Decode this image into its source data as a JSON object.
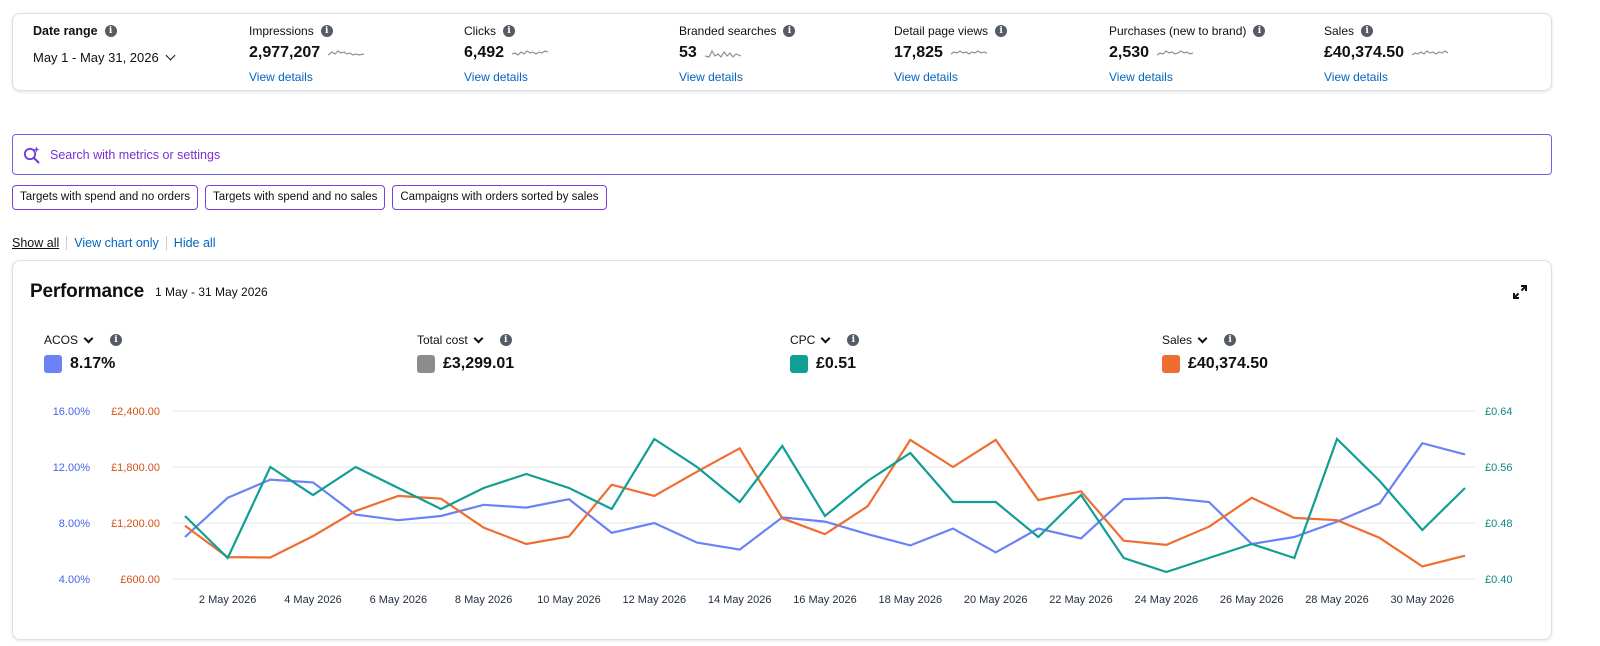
{
  "summary": {
    "date_range": {
      "label": "Date range",
      "value": "May 1 - May 31, 2026"
    },
    "metrics": [
      {
        "label": "Impressions",
        "value": "2,977,207",
        "link": "View details"
      },
      {
        "label": "Clicks",
        "value": "6,492",
        "link": "View details"
      },
      {
        "label": "Branded searches",
        "value": "53",
        "link": "View details"
      },
      {
        "label": "Detail page views",
        "value": "17,825",
        "link": "View details"
      },
      {
        "label": "Purchases (new to brand)",
        "value": "2,530",
        "link": "View details"
      },
      {
        "label": "Sales",
        "value": "£40,374.50",
        "link": "View details"
      }
    ]
  },
  "search": {
    "placeholder": "Search with metrics or settings"
  },
  "chips": [
    "Targets with spend and no orders",
    "Targets with spend and no sales",
    "Campaigns with orders sorted by sales"
  ],
  "view_links": {
    "show_all": "Show all",
    "chart_only": "View chart only",
    "hide_all": "Hide all"
  },
  "performance": {
    "title": "Performance",
    "date": "1 May - 31 May 2026",
    "metrics": [
      {
        "label": "ACOS",
        "value": "8.17%",
        "color": "#6b82f5"
      },
      {
        "label": "Total cost",
        "value": "£3,299.01",
        "color": "#8c8c8c"
      },
      {
        "label": "CPC",
        "value": "£0.51",
        "color": "#119e94"
      },
      {
        "label": "Sales",
        "value": "£40,374.50",
        "color": "#f06d32"
      }
    ]
  },
  "chart_data": {
    "type": "line",
    "x_ticks": [
      "2 May 2026",
      "4 May 2026",
      "6 May 2026",
      "8 May 2026",
      "10 May 2026",
      "12 May 2026",
      "14 May 2026",
      "16 May 2026",
      "18 May 2026",
      "20 May 2026",
      "22 May 2026",
      "24 May 2026",
      "26 May 2026",
      "28 May 2026",
      "30 May 2026"
    ],
    "x": [
      "1 May 2026",
      "2 May 2026",
      "3 May 2026",
      "4 May 2026",
      "5 May 2026",
      "6 May 2026",
      "7 May 2026",
      "8 May 2026",
      "9 May 2026",
      "10 May 2026",
      "11 May 2026",
      "12 May 2026",
      "13 May 2026",
      "14 May 2026",
      "15 May 2026",
      "16 May 2026",
      "17 May 2026",
      "18 May 2026",
      "19 May 2026",
      "20 May 2026",
      "21 May 2026",
      "22 May 2026",
      "23 May 2026",
      "24 May 2026",
      "25 May 2026",
      "26 May 2026",
      "27 May 2026",
      "28 May 2026",
      "29 May 2026",
      "30 May 2026",
      "31 May 2026"
    ],
    "axes": {
      "left_acos": {
        "ticks": [
          "4.00%",
          "8.00%",
          "12.00%",
          "16.00%"
        ],
        "range": [
          4,
          16
        ],
        "color": "#4a63e6"
      },
      "left_sales": {
        "ticks": [
          "£600.00",
          "£1,200.00",
          "£1,800.00",
          "£2,400.00"
        ],
        "range": [
          600,
          2400
        ],
        "color": "#d35417"
      },
      "right_cpc": {
        "ticks": [
          "£0.40",
          "£0.48",
          "£0.56",
          "£0.64"
        ],
        "range": [
          0.4,
          0.64
        ],
        "color": "#0e8a80"
      }
    },
    "series": [
      {
        "name": "ACOS",
        "axis": "left_acos",
        "color": "#6b82f5",
        "values": [
          7.0,
          9.8,
          11.1,
          10.9,
          8.6,
          8.2,
          8.5,
          9.3,
          9.1,
          9.7,
          7.3,
          8.0,
          6.6,
          6.1,
          8.4,
          8.1,
          7.2,
          6.4,
          7.6,
          5.9,
          7.6,
          6.9,
          9.7,
          9.8,
          9.5,
          6.5,
          7.0,
          8.1,
          9.4,
          13.7,
          12.9
        ]
      },
      {
        "name": "Sales",
        "axis": "left_sales",
        "color": "#f06d32",
        "values": [
          1170,
          835,
          830,
          1060,
          1330,
          1490,
          1460,
          1150,
          975,
          1055,
          1610,
          1490,
          1750,
          2000,
          1250,
          1080,
          1380,
          2090,
          1800,
          2090,
          1445,
          1540,
          1010,
          965,
          1160,
          1470,
          1255,
          1230,
          1040,
          735,
          850
        ]
      },
      {
        "name": "CPC",
        "axis": "right_cpc",
        "color": "#119e94",
        "values": [
          0.49,
          0.43,
          0.56,
          0.52,
          0.56,
          0.53,
          0.5,
          0.53,
          0.55,
          0.53,
          0.5,
          0.6,
          0.56,
          0.51,
          0.59,
          0.49,
          0.54,
          0.58,
          0.51,
          0.51,
          0.46,
          0.52,
          0.43,
          0.41,
          0.43,
          0.45,
          0.43,
          0.6,
          0.54,
          0.47,
          0.53
        ]
      }
    ],
    "grid": true
  }
}
